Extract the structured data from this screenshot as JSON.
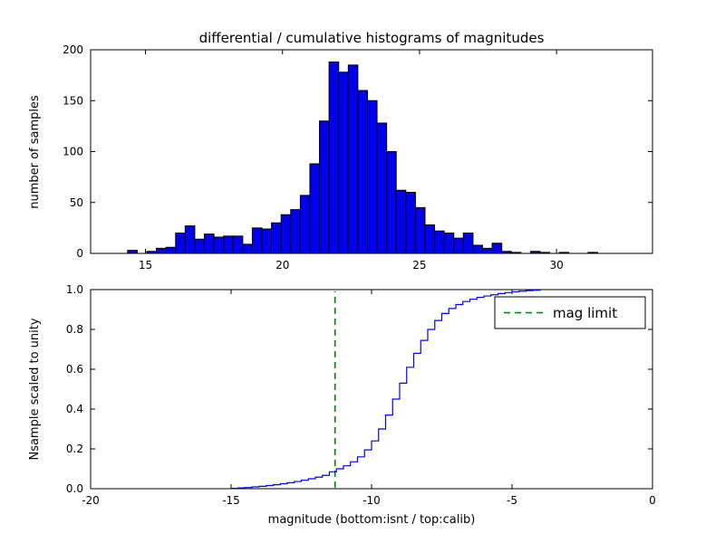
{
  "chart_data": [
    {
      "type": "bar",
      "subplot": "top",
      "title": "differential / cumulative histograms of magnitudes",
      "ylabel": "number of samples",
      "xlim": [
        13,
        33.5
      ],
      "ylim": [
        0,
        200
      ],
      "xticks": [
        15,
        20,
        25,
        30
      ],
      "xtick_labels": [
        "15",
        "20",
        "25",
        "30"
      ],
      "yticks": [
        0,
        50,
        100,
        150,
        200
      ],
      "ytick_labels": [
        "0",
        "50",
        "100",
        "150",
        "200"
      ],
      "bar_color": "#0000ee",
      "bar_edge_color": "#000000",
      "bin_start": 14.0,
      "bin_width": 0.35,
      "counts": [
        0,
        3,
        0,
        2,
        5,
        6,
        20,
        27,
        14,
        19,
        16,
        17,
        17,
        9,
        25,
        24,
        30,
        38,
        43,
        57,
        88,
        130,
        188,
        178,
        185,
        160,
        150,
        128,
        100,
        62,
        60,
        45,
        28,
        22,
        20,
        15,
        20,
        8,
        5,
        10,
        2,
        1,
        0,
        2,
        1,
        0,
        1,
        0,
        0,
        1
      ],
      "grid": false
    },
    {
      "type": "line",
      "subplot": "bottom",
      "ylabel": "Nsample scaled to unity",
      "xlabel": "magnitude (bottom:isnt / top:calib)",
      "xlim": [
        -20,
        0
      ],
      "ylim": [
        0,
        1
      ],
      "xticks": [
        -20,
        -15,
        -10,
        -5,
        0
      ],
      "xtick_labels": [
        "-20",
        "-15",
        "-10",
        "-5",
        "0"
      ],
      "yticks": [
        0,
        0.2,
        0.4,
        0.6,
        0.8,
        1.0
      ],
      "ytick_labels": [
        "0.0",
        "0.2",
        "0.4",
        "0.6",
        "0.8",
        "1.0"
      ],
      "line_color": "#0000ff",
      "step": true,
      "x": [
        -15.0,
        -14.75,
        -14.5,
        -14.25,
        -14.0,
        -13.75,
        -13.5,
        -13.25,
        -13.0,
        -12.75,
        -12.5,
        -12.25,
        -12.0,
        -11.75,
        -11.5,
        -11.25,
        -11.0,
        -10.75,
        -10.5,
        -10.25,
        -10.0,
        -9.75,
        -9.5,
        -9.25,
        -9.0,
        -8.75,
        -8.5,
        -8.25,
        -8.0,
        -7.75,
        -7.5,
        -7.25,
        -7.0,
        -6.75,
        -6.5,
        -6.25,
        -6.0,
        -5.75,
        -5.5,
        -5.25,
        -5.0,
        -4.75,
        -4.5,
        -4.25,
        -4.0
      ],
      "y": [
        0.002,
        0.004,
        0.006,
        0.009,
        0.012,
        0.016,
        0.02,
        0.025,
        0.03,
        0.036,
        0.043,
        0.05,
        0.058,
        0.067,
        0.085,
        0.1,
        0.115,
        0.135,
        0.16,
        0.195,
        0.24,
        0.3,
        0.37,
        0.45,
        0.53,
        0.61,
        0.68,
        0.745,
        0.8,
        0.845,
        0.88,
        0.905,
        0.925,
        0.94,
        0.952,
        0.961,
        0.968,
        0.974,
        0.98,
        0.985,
        0.989,
        0.992,
        0.995,
        0.997,
        1.0
      ],
      "vline": {
        "x": -11.3,
        "color": "#008000",
        "style": "dashed",
        "label": "mag limit"
      },
      "legend": {
        "label": "mag limit",
        "position": "upper right",
        "line_color": "#008000"
      },
      "grid": false
    }
  ]
}
